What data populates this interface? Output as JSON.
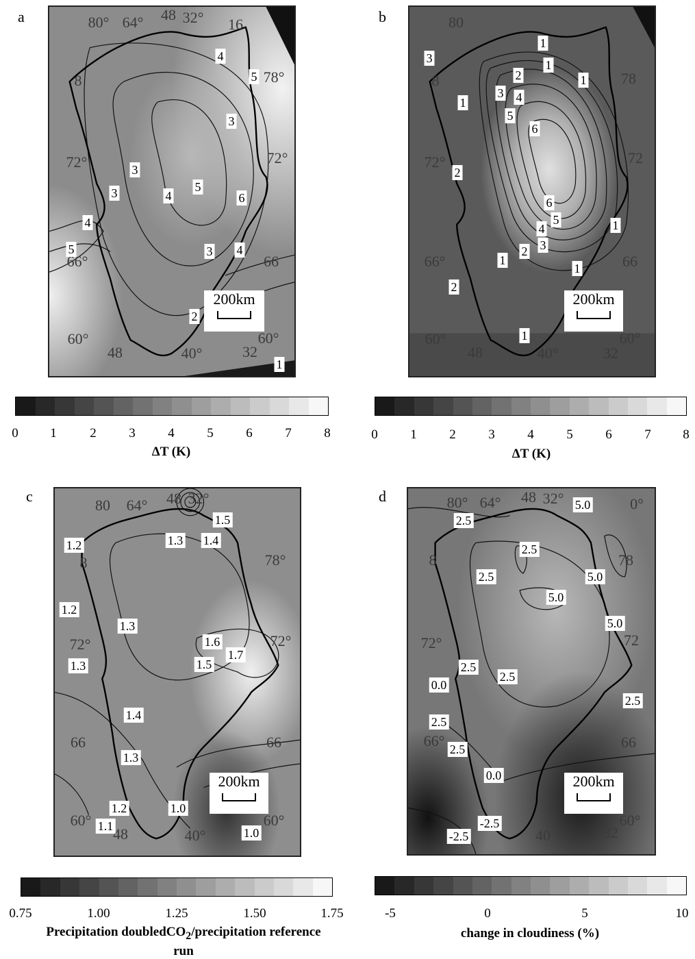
{
  "panels": {
    "a": {
      "letter": "a",
      "geo_labels": [
        "80°",
        "64°",
        "48",
        "32°",
        "16",
        "8",
        "78°",
        "72°",
        "72°",
        "66°",
        "66",
        "60°",
        "48",
        "40°",
        "32",
        "60°"
      ],
      "contour_labels": [
        "4",
        "5",
        "3",
        "3",
        "3",
        "3",
        "4",
        "5",
        "4",
        "6",
        "5",
        "3",
        "4",
        "2",
        "1"
      ],
      "scale_label": "200km"
    },
    "b": {
      "letter": "b",
      "geo_labels": [
        "80",
        "8",
        "78",
        "72°",
        "72",
        "66°",
        "66",
        "60°",
        "48",
        "40°",
        "32",
        "60°"
      ],
      "contour_labels": [
        "3",
        "1",
        "1",
        "1",
        "1",
        "2",
        "3",
        "4",
        "5",
        "6",
        "2",
        "6",
        "5",
        "4",
        "3",
        "2",
        "1",
        "1",
        "1",
        "2",
        "1"
      ],
      "scale_label": "200km"
    },
    "c": {
      "letter": "c",
      "geo_labels": [
        "80",
        "64°",
        "48",
        "32°",
        "8",
        "78°",
        "72°",
        "72°",
        "66",
        "66",
        "60°",
        "48",
        "40°",
        "60°"
      ],
      "contour_labels": [
        "1.5",
        "1.2",
        "1.3",
        "1.4",
        "1.2",
        "1.3",
        "1.6",
        "1.7",
        "1.5",
        "1.3",
        "1.4",
        "1.3",
        "1.2",
        "1.1",
        "1.0",
        "1.0"
      ],
      "scale_label": "200km"
    },
    "d": {
      "letter": "d",
      "geo_labels": [
        "80°",
        "64°",
        "48",
        "32°",
        "0°",
        "8",
        "78",
        "72°",
        "72",
        "66°",
        "66",
        "60°",
        "40",
        "32"
      ],
      "contour_labels": [
        "5.0",
        "2.5",
        "2.5",
        "2.5",
        "5.0",
        "5.0",
        "5.0",
        "2.5",
        "0.0",
        "2.5",
        "2.5",
        "2.5",
        "2.5",
        "0.0",
        "-2.5",
        "-2.5"
      ],
      "scale_label": "200km"
    }
  },
  "colorbars": {
    "temp_a": {
      "ticks": [
        "0",
        "1",
        "2",
        "3",
        "4",
        "5",
        "6",
        "7",
        "8"
      ],
      "title": "ΔT (K)"
    },
    "temp_b": {
      "ticks": [
        "0",
        "1",
        "2",
        "3",
        "4",
        "5",
        "6",
        "7",
        "8"
      ],
      "title": "ΔT (K)"
    },
    "precip": {
      "ticks": [
        "0.75",
        "1.00",
        "1.25",
        "1.50",
        "1.75"
      ],
      "title_pre": "Precipitation doubledCO",
      "title_sub": "2",
      "title_post": "/precipitation reference",
      "title_line2": "run"
    },
    "cloud": {
      "ticks": [
        "-5",
        "0",
        "5",
        "10"
      ],
      "title": "change in cloudiness (%)"
    }
  }
}
